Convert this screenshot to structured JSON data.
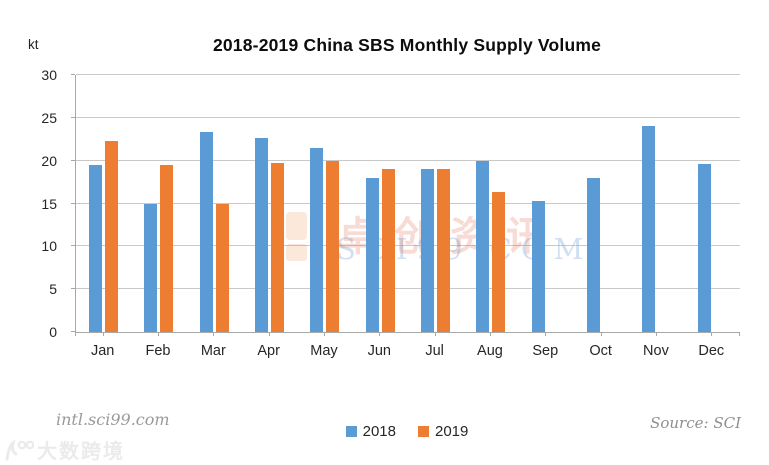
{
  "title": "2018-2019 China SBS Monthly Supply Volume",
  "chart_data": {
    "type": "bar",
    "title": "2018-2019 China SBS Monthly Supply Volume",
    "xlabel": "",
    "ylabel": "kt",
    "categories": [
      "Jan",
      "Feb",
      "Mar",
      "Apr",
      "May",
      "Jun",
      "Jul",
      "Aug",
      "Sep",
      "Oct",
      "Nov",
      "Dec"
    ],
    "series": [
      {
        "name": "2018",
        "color": "#5B9BD5",
        "values": [
          19.5,
          15,
          23.4,
          22.6,
          21.5,
          18,
          19,
          20,
          15.3,
          18,
          24,
          19.6
        ]
      },
      {
        "name": "2019",
        "color": "#ED7D31",
        "values": [
          22.3,
          19.5,
          15,
          19.7,
          20,
          19,
          19,
          16.3,
          null,
          null,
          null,
          null
        ]
      }
    ],
    "ylim": [
      0,
      30
    ],
    "ytick_step": 5,
    "grid": true,
    "legend_position": "bottom"
  },
  "footer": {
    "website": "intl.sci99.com",
    "source": "Source: SCI"
  },
  "watermarks": {
    "center_cn": "卓创资讯",
    "center_en": "SCI99 COM",
    "corner": "大数跨境"
  }
}
